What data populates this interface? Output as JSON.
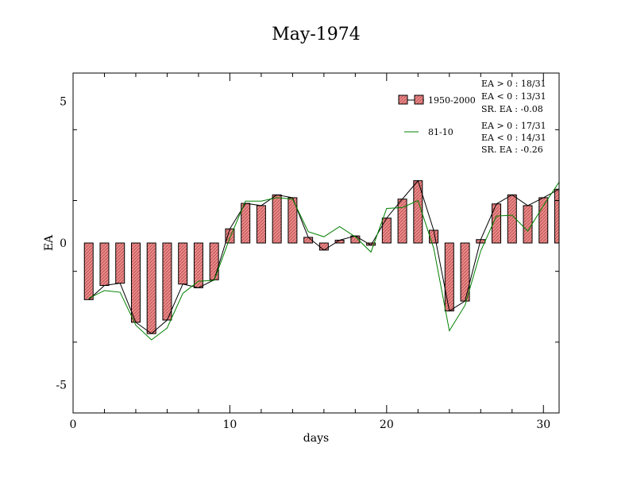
{
  "chart_data": {
    "type": "bar",
    "title": "May-1974",
    "xlabel": "days",
    "ylabel": "EA",
    "xlim": [
      0,
      31
    ],
    "ylim": [
      -6,
      6
    ],
    "xticks": [
      0,
      10,
      20,
      30
    ],
    "yticks": [
      -5,
      0,
      5
    ],
    "x": [
      1,
      2,
      3,
      4,
      5,
      6,
      7,
      8,
      9,
      10,
      11,
      12,
      13,
      14,
      15,
      16,
      17,
      18,
      19,
      20,
      21,
      22,
      23,
      24,
      25,
      26,
      27,
      28,
      29,
      30,
      31
    ],
    "series": [
      {
        "name": "1950-2000",
        "kind": "bar+line",
        "fill": "#e77b7b",
        "line_color": "#000000",
        "values": [
          -2.0,
          -1.5,
          -1.42,
          -2.8,
          -3.2,
          -2.72,
          -1.45,
          -1.58,
          -1.3,
          0.5,
          1.4,
          1.32,
          1.7,
          1.6,
          0.2,
          -0.25,
          0.1,
          0.25,
          -0.08,
          0.88,
          1.55,
          2.2,
          0.45,
          -2.4,
          -2.05,
          0.12,
          1.38,
          1.7,
          1.32,
          1.6,
          1.9
        ]
      },
      {
        "name": "81-10",
        "kind": "line",
        "line_color": "#008000",
        "values": [
          -1.95,
          -1.68,
          -1.74,
          -2.9,
          -3.42,
          -3.0,
          -1.78,
          -1.35,
          -1.32,
          0.18,
          1.48,
          1.48,
          1.6,
          1.55,
          0.4,
          0.22,
          0.58,
          0.22,
          -0.32,
          1.22,
          1.25,
          1.5,
          -0.18,
          -3.1,
          -2.2,
          -0.28,
          0.95,
          0.98,
          0.42,
          1.32,
          2.15
        ]
      }
    ],
    "legend_placement": "top-right",
    "stats": {
      "group1": [
        "EA > 0 : 18/31",
        "EA < 0 : 13/31",
        "SR. EA : -0.08"
      ],
      "group2": [
        "EA > 0 : 17/31",
        "EA < 0 : 14/31",
        "SR. EA : -0.26"
      ]
    }
  }
}
